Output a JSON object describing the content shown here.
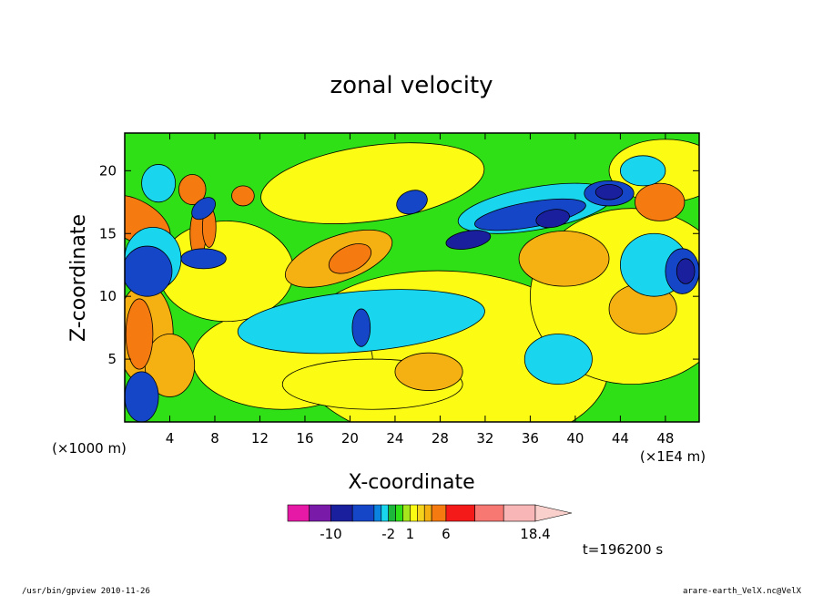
{
  "chart_data": {
    "type": "heatmap",
    "title": "zonal velocity",
    "xlabel": "X-coordinate",
    "ylabel": "Z-coordinate",
    "x_unit": "(×1E4 m)",
    "y_unit": "(×1000 m)",
    "xlim": [
      0,
      51
    ],
    "ylim": [
      0,
      23
    ],
    "x_ticks": [
      "4",
      "8",
      "12",
      "16",
      "20",
      "24",
      "28",
      "32",
      "36",
      "40",
      "44",
      "48"
    ],
    "y_ticks": [
      "5",
      "10",
      "15",
      "20"
    ],
    "colorbar": {
      "levels": [
        -16,
        -13,
        -10,
        -7,
        -4,
        -3,
        -2,
        -1,
        0,
        1,
        2,
        3,
        4,
        6,
        10,
        14,
        18.4
      ],
      "colors": [
        "#e619a6",
        "#7a1aa8",
        "#1a1f9e",
        "#1646c8",
        "#0a84e0",
        "#19d6ee",
        "#1bb63a",
        "#2ee015",
        "#a6e61c",
        "#fbfb14",
        "#f5d31c",
        "#f5b012",
        "#f57a0f",
        "#f41a1a",
        "#f77872",
        "#f9b6b6",
        "#fad0cc"
      ],
      "labels": [
        "-10",
        "-2",
        "1",
        "6",
        "18.4"
      ]
    },
    "time_label": "t=196200 s",
    "series": []
  },
  "footer": {
    "left": "/usr/bin/gpview   2010-11-26",
    "right": "arare-earth_VelX.nc@VelX"
  },
  "colors": {
    "background": "#2ee015",
    "axis": "#000000"
  }
}
